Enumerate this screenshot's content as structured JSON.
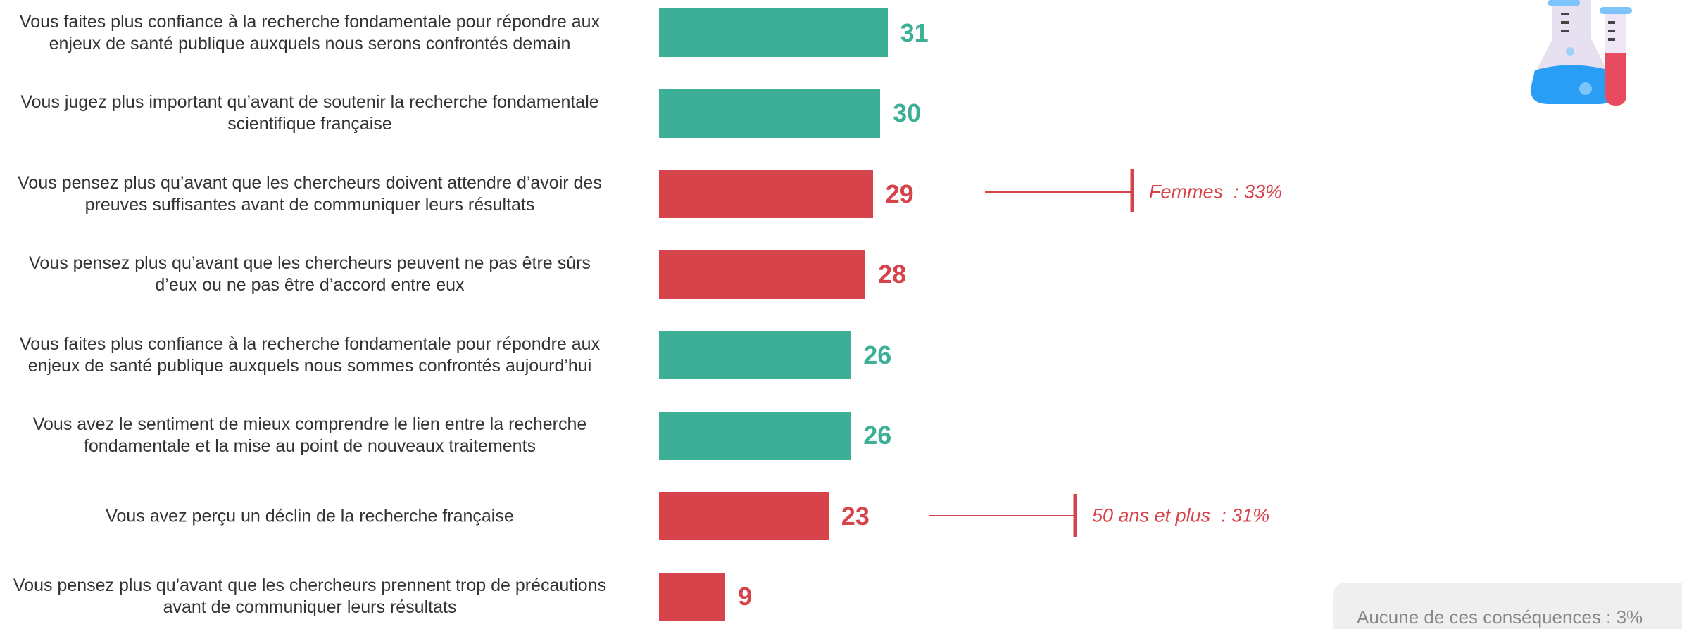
{
  "chart_data": {
    "type": "bar",
    "orientation": "horizontal",
    "categories": [
      "Vous faites plus confiance à la recherche fondamentale pour répondre aux\nenjeux de santé publique auxquels nous serons confrontés demain",
      "Vous jugez plus important qu’avant de soutenir la recherche fondamentale\nscientifique française",
      "Vous pensez plus qu’avant que les chercheurs doivent attendre d’avoir des\npreuves suffisantes avant de communiquer leurs résultats",
      "Vous pensez plus qu’avant que les chercheurs peuvent ne pas être sûrs\nd’eux ou ne pas être d’accord entre eux",
      "Vous faites plus confiance à la recherche fondamentale pour répondre aux\nenjeux de santé publique auxquels nous sommes confrontés aujourd’hui",
      "Vous avez le sentiment de mieux comprendre le lien entre la recherche\nfondamentale et la mise au point de nouveaux traitements",
      "Vous avez perçu un déclin de la recherche française",
      "Vous pensez plus qu’avant que les chercheurs prennent trop de précautions\navant de communiquer leurs résultats"
    ],
    "values": [
      31,
      30,
      29,
      28,
      26,
      26,
      23,
      9
    ],
    "colors": [
      "#3daf96",
      "#3daf96",
      "#d6434a",
      "#d6434a",
      "#3daf96",
      "#3daf96",
      "#d6434a",
      "#d6434a"
    ],
    "xlim": [
      0,
      100
    ],
    "annotations": [
      "Femmes  : 33%",
      "50 ans et plus  : 31%"
    ],
    "note": "Aucune de ces conséquences : 3%"
  }
}
